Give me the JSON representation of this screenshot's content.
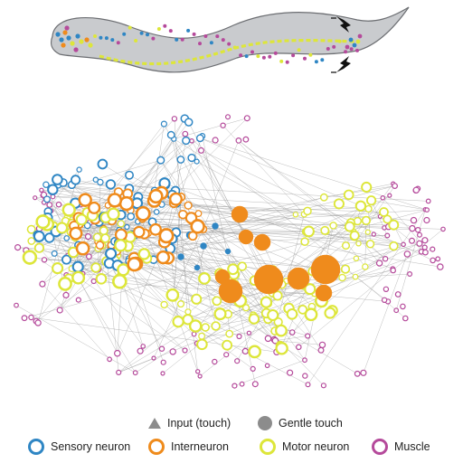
{
  "colors": {
    "sensory": "#2f86c4",
    "interneuron": "#ef8b1c",
    "motor": "#dde63a",
    "muscle": "#b54a9b",
    "edge": "#9a9a9a",
    "worm_body": "#c9cbce",
    "worm_outline": "#6c6e72",
    "marker": "#8c8c8c"
  },
  "legend": {
    "input_touch": "Input (touch)",
    "gentle_touch": "Gentle touch",
    "sensory_neuron": "Sensory neuron",
    "interneuron": "Interneuron",
    "motor_neuron": "Motor neuron",
    "muscle": "Muscle"
  },
  "icons": {
    "input_touch": "triangle-icon",
    "gentle_touch": "filled-circle-icon",
    "touch_stimulus": "lightning-bolt-icon"
  }
}
